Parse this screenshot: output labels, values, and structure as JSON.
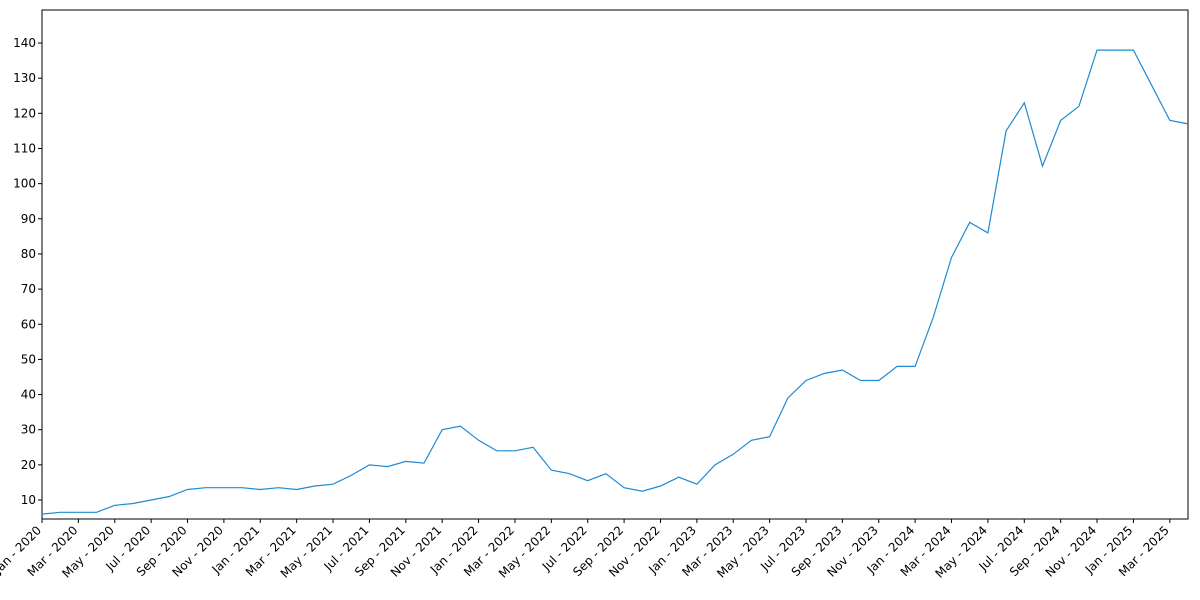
{
  "chart_data": {
    "type": "line",
    "x": [
      "2020-01",
      "2020-02",
      "2020-03",
      "2020-04",
      "2020-05",
      "2020-06",
      "2020-07",
      "2020-08",
      "2020-09",
      "2020-10",
      "2020-11",
      "2020-12",
      "2021-01",
      "2021-02",
      "2021-03",
      "2021-04",
      "2021-05",
      "2021-06",
      "2021-07",
      "2021-08",
      "2021-09",
      "2021-10",
      "2021-11",
      "2021-12",
      "2022-01",
      "2022-02",
      "2022-03",
      "2022-04",
      "2022-05",
      "2022-06",
      "2022-07",
      "2022-08",
      "2022-09",
      "2022-10",
      "2022-11",
      "2022-12",
      "2023-01",
      "2023-02",
      "2023-03",
      "2023-04",
      "2023-05",
      "2023-06",
      "2023-07",
      "2023-08",
      "2023-09",
      "2023-10",
      "2023-11",
      "2023-12",
      "2024-01",
      "2024-02",
      "2024-03",
      "2024-04",
      "2024-05",
      "2024-06",
      "2024-07",
      "2024-08",
      "2024-09",
      "2024-10",
      "2024-11",
      "2024-12",
      "2025-01",
      "2025-02",
      "2025-03",
      "2025-04"
    ],
    "series": [
      {
        "color": "#1f8ad2",
        "values": [
          6,
          6.5,
          6.5,
          6.5,
          8.5,
          9,
          10,
          11,
          13,
          13.5,
          13.5,
          13.5,
          13,
          13.5,
          13,
          14,
          14.5,
          17,
          20,
          19.5,
          21,
          20.5,
          30,
          31,
          27,
          24,
          24,
          25,
          18.5,
          17.5,
          15.5,
          17.5,
          13.5,
          12.5,
          14,
          16.5,
          14.5,
          20,
          23,
          27,
          28,
          39,
          44,
          46,
          47,
          44,
          44,
          48,
          48,
          62,
          79,
          89,
          86,
          115,
          123,
          105,
          118,
          122,
          138,
          138,
          138,
          128,
          118,
          117
        ]
      }
    ],
    "xlim": [
      "2020-01",
      "2025-04"
    ],
    "xticks": [
      {
        "value": "2020-01",
        "label": "Jan - 2020"
      },
      {
        "value": "2020-03",
        "label": "Mar - 2020"
      },
      {
        "value": "2020-05",
        "label": "May - 2020"
      },
      {
        "value": "2020-07",
        "label": "Jul - 2020"
      },
      {
        "value": "2020-09",
        "label": "Sep - 2020"
      },
      {
        "value": "2020-11",
        "label": "Nov - 2020"
      },
      {
        "value": "2021-01",
        "label": "Jan - 2021"
      },
      {
        "value": "2021-03",
        "label": "Mar - 2021"
      },
      {
        "value": "2021-05",
        "label": "May - 2021"
      },
      {
        "value": "2021-07",
        "label": "Jul - 2021"
      },
      {
        "value": "2021-09",
        "label": "Sep - 2021"
      },
      {
        "value": "2021-11",
        "label": "Nov - 2021"
      },
      {
        "value": "2022-01",
        "label": "Jan - 2022"
      },
      {
        "value": "2022-03",
        "label": "Mar - 2022"
      },
      {
        "value": "2022-05",
        "label": "May - 2022"
      },
      {
        "value": "2022-07",
        "label": "Jul - 2022"
      },
      {
        "value": "2022-09",
        "label": "Sep - 2022"
      },
      {
        "value": "2022-11",
        "label": "Nov - 2022"
      },
      {
        "value": "2023-01",
        "label": "Jan - 2023"
      },
      {
        "value": "2023-03",
        "label": "Mar - 2023"
      },
      {
        "value": "2023-05",
        "label": "May - 2023"
      },
      {
        "value": "2023-07",
        "label": "Jul - 2023"
      },
      {
        "value": "2023-09",
        "label": "Sep - 2023"
      },
      {
        "value": "2023-11",
        "label": "Nov - 2023"
      },
      {
        "value": "2024-01",
        "label": "Jan - 2024"
      },
      {
        "value": "2024-03",
        "label": "Mar - 2024"
      },
      {
        "value": "2024-05",
        "label": "May - 2024"
      },
      {
        "value": "2024-07",
        "label": "Jul - 2024"
      },
      {
        "value": "2024-09",
        "label": "Sep - 2024"
      },
      {
        "value": "2024-11",
        "label": "Nov - 2024"
      },
      {
        "value": "2025-01",
        "label": "Jan - 2025"
      },
      {
        "value": "2025-03",
        "label": "Mar - 2025"
      }
    ],
    "ylim": [
      4.6,
      149.4
    ],
    "yticks": [
      10,
      20,
      30,
      40,
      50,
      60,
      70,
      80,
      90,
      100,
      110,
      120,
      130,
      140
    ],
    "grid": false
  }
}
